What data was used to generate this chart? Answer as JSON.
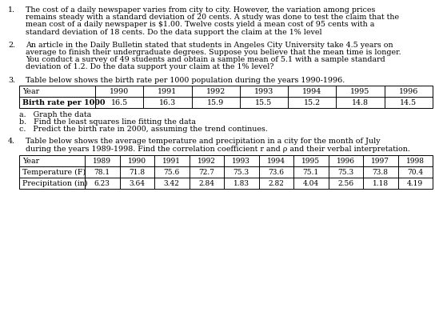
{
  "bg_color": "#ffffff",
  "font_family": "DejaVu Serif",
  "para1_number": "1.",
  "para1_lines": [
    "The cost of a daily newspaper varies from city to city. However, the variation among prices",
    "remains steady with a standard deviation of 20 cents. A study was done to test the claim that the",
    "mean cost of a daily newspaper is $1.00. Twelve costs yield a mean cost of 95 cents with a",
    "standard deviation of 18 cents. Do the data support the claim at the 1% level"
  ],
  "para2_number": "2.",
  "para2_lines": [
    "An article in the Daily Bulletin stated that students in Angeles City University take 4.5 years on",
    "average to finish their undergraduate degrees. Suppose you believe that the mean time is longer.",
    "You conduct a survey of 49 students and obtain a sample mean of 5.1 with a sample standard",
    "deviation of 1.2. Do the data support your claim at the 1% level?"
  ],
  "para3_number": "3.",
  "para3_intro": "Table below shows the birth rate per 1000 population during the years 1990-1996.",
  "table3_headers": [
    "Year",
    "1990",
    "1991",
    "1992",
    "1993",
    "1994",
    "1995",
    "1996"
  ],
  "table3_data": [
    "Birth rate per 1000",
    "16.5",
    "16.3",
    "15.9",
    "15.5",
    "15.2",
    "14.8",
    "14.5"
  ],
  "para3_bullets": [
    "a.   Graph the data",
    "b.   Find the least squares line fitting the data",
    "c.   Predict the birth rate in 2000, assuming the trend continues."
  ],
  "para4_number": "4.",
  "para4_lines": [
    "Table below shows the average temperature and precipitation in a city for the month of July",
    "during the years 1989-1998. Find the correlation coefficient r and ρ and their verbal interpretation."
  ],
  "table4_headers": [
    "Year",
    "1989",
    "1990",
    "1991",
    "1992",
    "1993",
    "1994",
    "1995",
    "1996",
    "1997",
    "1998"
  ],
  "table4_row1": [
    "Temperature (F)",
    "78.1",
    "71.8",
    "75.6",
    "72.7",
    "75.3",
    "73.6",
    "75.1",
    "75.3",
    "73.8",
    "70.4"
  ],
  "table4_row2": [
    "Precipitation (in)",
    "6.23",
    "3.64",
    "3.42",
    "2.84",
    "1.83",
    "2.82",
    "4.04",
    "2.56",
    "1.18",
    "4.19"
  ]
}
